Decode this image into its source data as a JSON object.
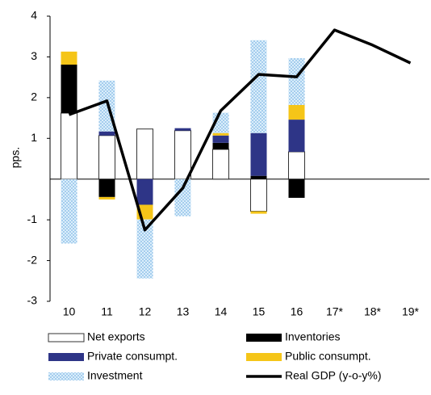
{
  "chart_data": {
    "type": "combo",
    "y_label": "pps.",
    "categories": [
      "10",
      "11",
      "12",
      "13",
      "14",
      "15",
      "16",
      "17*",
      "18*",
      "19*"
    ],
    "ylim": [
      -3,
      4
    ],
    "yticks": [
      -3,
      -2,
      -1,
      1,
      2,
      3,
      4
    ],
    "series": [
      {
        "name": "Net exports",
        "type": "bar",
        "color": "#ffffff",
        "values": [
          1.62,
          1.07,
          1.23,
          1.19,
          0.73,
          -0.79,
          0.67,
          null,
          null,
          null
        ]
      },
      {
        "name": "Inventories",
        "type": "bar",
        "color": "#000000",
        "values": [
          1.19,
          -0.44,
          0,
          0,
          0.16,
          0.08,
          -0.46,
          null,
          null,
          null
        ]
      },
      {
        "name": "Private consumpt.",
        "type": "bar",
        "color": "#2e3587",
        "values": [
          0,
          0.1,
          -0.63,
          0.06,
          0.18,
          1.05,
          0.79,
          null,
          null,
          null
        ]
      },
      {
        "name": "Public consumpt.",
        "type": "bar",
        "color": "#f5c518",
        "values": [
          0.32,
          -0.06,
          -0.36,
          0,
          0.06,
          -0.06,
          0.36,
          null,
          null,
          null
        ]
      },
      {
        "name": "Investment",
        "type": "bar",
        "color": "#bcdcf3",
        "pattern": "dots",
        "values": [
          -1.58,
          1.25,
          -1.45,
          -0.91,
          0.5,
          2.28,
          1.15,
          null,
          null,
          null
        ]
      },
      {
        "name": "Real GDP (y-o-y%)",
        "type": "line",
        "color": "#000000",
        "values": [
          1.58,
          1.92,
          -1.25,
          -0.22,
          1.68,
          2.57,
          2.51,
          3.66,
          3.29,
          2.85
        ]
      }
    ]
  }
}
